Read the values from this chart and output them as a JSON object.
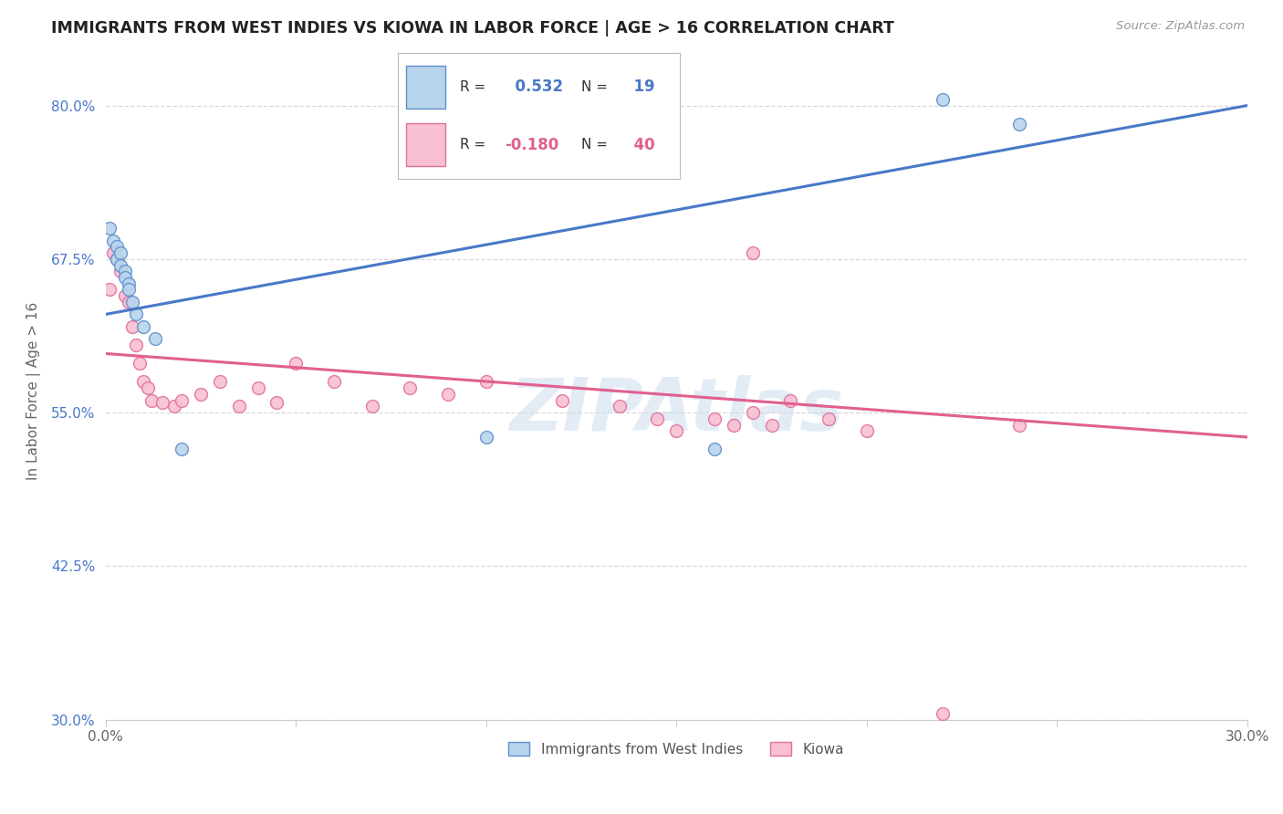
{
  "title": "IMMIGRANTS FROM WEST INDIES VS KIOWA IN LABOR FORCE | AGE > 16 CORRELATION CHART",
  "source": "Source: ZipAtlas.com",
  "ylabel": "In Labor Force | Age > 16",
  "xlim": [
    0.0,
    0.3
  ],
  "ylim": [
    0.3,
    0.835
  ],
  "xticks": [
    0.0,
    0.05,
    0.1,
    0.15,
    0.2,
    0.25,
    0.3
  ],
  "xticklabels": [
    "0.0%",
    "",
    "",
    "",
    "",
    "",
    "30.0%"
  ],
  "ytick_positions": [
    0.3,
    0.425,
    0.55,
    0.675,
    0.8
  ],
  "yticklabels": [
    "30.0%",
    "42.5%",
    "55.0%",
    "67.5%",
    "80.0%"
  ],
  "background_color": "#ffffff",
  "grid_color": "#d8d8d8",
  "west_indies_x": [
    0.001,
    0.002,
    0.003,
    0.003,
    0.004,
    0.004,
    0.005,
    0.005,
    0.006,
    0.006,
    0.007,
    0.008,
    0.01,
    0.013,
    0.02,
    0.1,
    0.16,
    0.22,
    0.24
  ],
  "west_indies_y": [
    0.7,
    0.69,
    0.685,
    0.675,
    0.68,
    0.67,
    0.665,
    0.66,
    0.655,
    0.65,
    0.64,
    0.63,
    0.62,
    0.61,
    0.52,
    0.53,
    0.52,
    0.805,
    0.785
  ],
  "kiowa_x": [
    0.001,
    0.002,
    0.003,
    0.004,
    0.005,
    0.006,
    0.007,
    0.008,
    0.009,
    0.01,
    0.011,
    0.012,
    0.015,
    0.018,
    0.02,
    0.025,
    0.03,
    0.035,
    0.04,
    0.045,
    0.05,
    0.06,
    0.07,
    0.08,
    0.09,
    0.1,
    0.12,
    0.135,
    0.145,
    0.15,
    0.16,
    0.165,
    0.17,
    0.175,
    0.18,
    0.19,
    0.2,
    0.22,
    0.24,
    0.17
  ],
  "kiowa_y": [
    0.65,
    0.68,
    0.675,
    0.665,
    0.645,
    0.64,
    0.62,
    0.605,
    0.59,
    0.575,
    0.57,
    0.56,
    0.558,
    0.555,
    0.56,
    0.565,
    0.575,
    0.555,
    0.57,
    0.558,
    0.59,
    0.575,
    0.555,
    0.57,
    0.565,
    0.575,
    0.56,
    0.555,
    0.545,
    0.535,
    0.545,
    0.54,
    0.55,
    0.54,
    0.56,
    0.545,
    0.535,
    0.305,
    0.54,
    0.68
  ],
  "west_indies_color": "#b8d4ec",
  "west_indies_edge_color": "#6090cc",
  "west_indies_line_color": "#4878c8",
  "kiowa_color": "#f8c0d0",
  "kiowa_edge_color": "#e070a0",
  "kiowa_line_color": "#e06090",
  "wi_trend_x0": 0.0,
  "wi_trend_y0": 0.63,
  "wi_trend_x1": 0.3,
  "wi_trend_y1": 0.8,
  "ki_trend_x0": 0.0,
  "ki_trend_y0": 0.598,
  "ki_trend_x1": 0.3,
  "ki_trend_y1": 0.53,
  "R_west_indies": 0.532,
  "N_west_indies": 19,
  "R_kiowa": -0.18,
  "N_kiowa": 40
}
